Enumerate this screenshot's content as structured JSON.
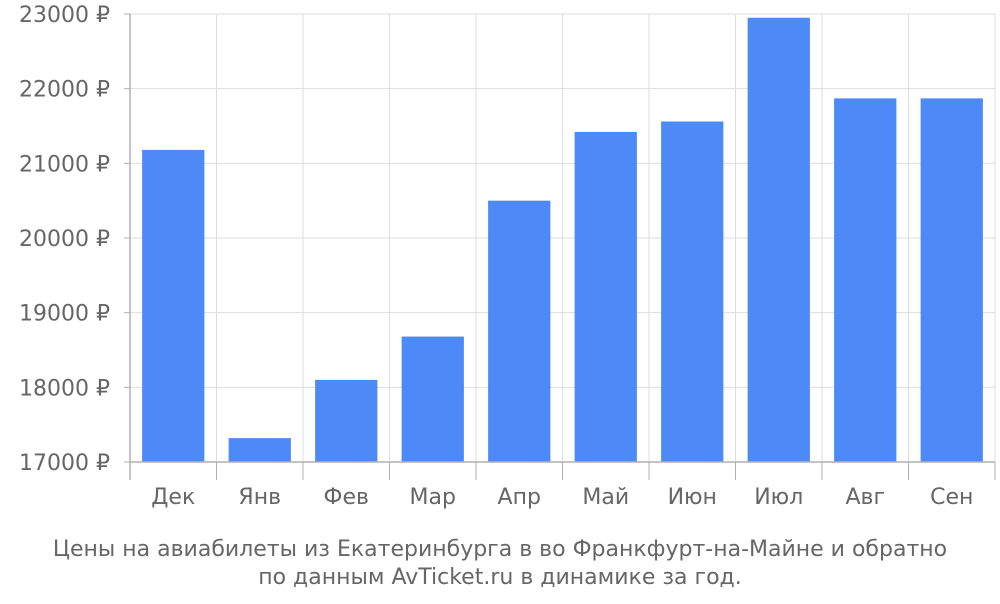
{
  "chart_data": {
    "type": "bar",
    "categories": [
      "Дек",
      "Янв",
      "Фев",
      "Мар",
      "Апр",
      "Май",
      "Июн",
      "Июл",
      "Авг",
      "Сен"
    ],
    "values": [
      21180,
      17320,
      18100,
      18680,
      20500,
      21420,
      21560,
      22950,
      21870,
      21870
    ],
    "ylim": [
      17000,
      23000
    ],
    "yticks": [
      17000,
      18000,
      19000,
      20000,
      21000,
      22000,
      23000
    ],
    "y_unit": "₽",
    "grid": true,
    "bar_color": "#4d8af8",
    "caption_lines": [
      "Цены на авиабилеты из Екатеринбурга в во Франкфурт-на-Майне и обратно",
      "по данным AvTicket.ru в динамике за год."
    ]
  }
}
